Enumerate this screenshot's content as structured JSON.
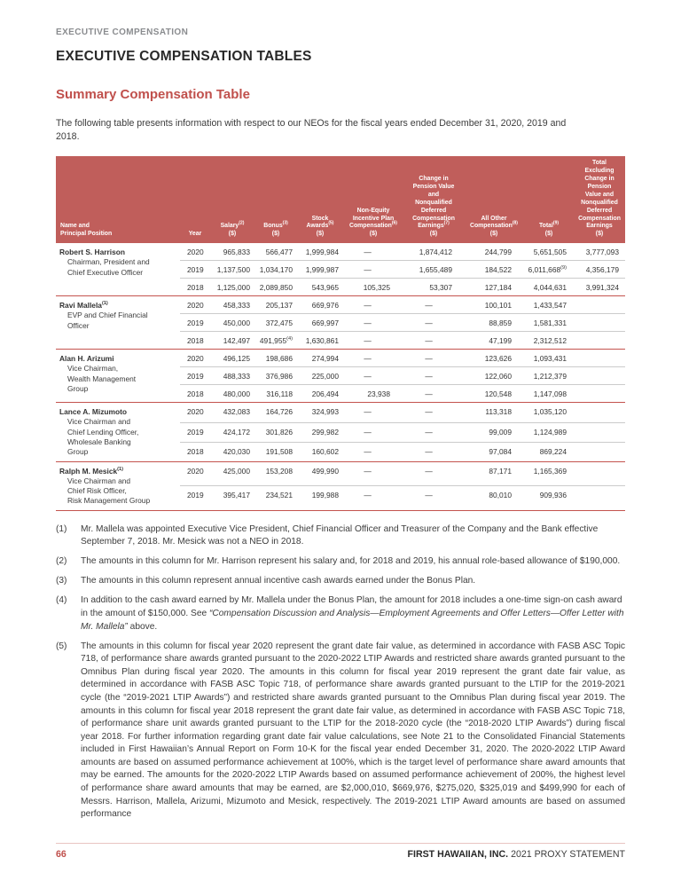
{
  "page": {
    "eyebrow": "EXECUTIVE COMPENSATION",
    "title": "EXECUTIVE COMPENSATION TABLES",
    "section_heading": "Summary Compensation Table",
    "intro": "The following table presents information with respect to our NEOs for the fiscal years ended December 31, 2020, 2019 and 2018."
  },
  "colors": {
    "accent_red": "#c0504c",
    "table_header_bg": "#c05e5b",
    "group_divider_red": "#c4534e",
    "row_divider_gray": "#cbcbcb",
    "eyebrow_gray": "#8a8c8f",
    "footer_line_pink": "#e9c4c2",
    "text_dark": "#282828",
    "text_body": "#3c3c3c"
  },
  "table": {
    "columns": [
      {
        "label": "Name and\nPrincipal Position",
        "sup": "",
        "unit": ""
      },
      {
        "label": "Year",
        "sup": "",
        "unit": ""
      },
      {
        "label": "Salary",
        "sup": "(2)",
        "unit": "($)"
      },
      {
        "label": "Bonus",
        "sup": "(3)",
        "unit": "($)"
      },
      {
        "label": "Stock\nAwards",
        "sup": "(5)",
        "unit": "($)"
      },
      {
        "label": "Non-Equity\nIncentive Plan\nCompensation",
        "sup": "(6)",
        "unit": "($)"
      },
      {
        "label": "Change in\nPension Value\nand\nNonqualified\nDeferred\nCompensation\nEarnings",
        "sup": "(7)",
        "unit": "($)"
      },
      {
        "label": "All Other\nCompensation",
        "sup": "(8)",
        "unit": "($)"
      },
      {
        "label": "Total",
        "sup": "(9)",
        "unit": "($)"
      },
      {
        "label": "Total\nExcluding\nChange in\nPension\nValue and\nNonqualified\nDeferred\nCompensation\nEarnings",
        "sup": "",
        "unit": "($)"
      }
    ],
    "groups": [
      {
        "name": "Robert S. Harrison",
        "name_sup": "",
        "position": "Chairman, President and\nChief Executive Officer",
        "rows": [
          {
            "year": "2020",
            "values": [
              "965,833",
              "566,477",
              "1,999,984",
              "—",
              "1,874,412",
              "244,799",
              "5,651,505",
              "3,777,093"
            ],
            "sups": {}
          },
          {
            "year": "2019",
            "values": [
              "1,137,500",
              "1,034,170",
              "1,999,987",
              "—",
              "1,655,489",
              "184,522",
              "6,011,668",
              "4,356,179"
            ],
            "sups": {
              "6": "(9)"
            }
          },
          {
            "year": "2018",
            "values": [
              "1,125,000",
              "2,089,850",
              "543,965",
              "105,325",
              "53,307",
              "127,184",
              "4,044,631",
              "3,991,324"
            ],
            "sups": {}
          }
        ]
      },
      {
        "name": "Ravi Mallela",
        "name_sup": "(1)",
        "position": "EVP and Chief Financial\nOfficer",
        "rows": [
          {
            "year": "2020",
            "values": [
              "458,333",
              "205,137",
              "669,976",
              "—",
              "—",
              "100,101",
              "1,433,547",
              ""
            ],
            "sups": {}
          },
          {
            "year": "2019",
            "values": [
              "450,000",
              "372,475",
              "669,997",
              "—",
              "—",
              "88,859",
              "1,581,331",
              ""
            ],
            "sups": {}
          },
          {
            "year": "2018",
            "values": [
              "142,497",
              "491,955",
              "1,630,861",
              "—",
              "—",
              "47,199",
              "2,312,512",
              ""
            ],
            "sups": {
              "1": "(4)"
            }
          }
        ]
      },
      {
        "name": "Alan H. Arizumi",
        "name_sup": "",
        "position": "Vice Chairman,\nWealth Management\nGroup",
        "rows": [
          {
            "year": "2020",
            "values": [
              "496,125",
              "198,686",
              "274,994",
              "—",
              "—",
              "123,626",
              "1,093,431",
              ""
            ],
            "sups": {}
          },
          {
            "year": "2019",
            "values": [
              "488,333",
              "376,986",
              "225,000",
              "—",
              "—",
              "122,060",
              "1,212,379",
              ""
            ],
            "sups": {}
          },
          {
            "year": "2018",
            "values": [
              "480,000",
              "316,118",
              "206,494",
              "23,938",
              "—",
              "120,548",
              "1,147,098",
              ""
            ],
            "sups": {}
          }
        ]
      },
      {
        "name": "Lance A. Mizumoto",
        "name_sup": "",
        "position": "Vice Chairman and\nChief Lending Officer,\nWholesale Banking\nGroup",
        "rows": [
          {
            "year": "2020",
            "values": [
              "432,083",
              "164,726",
              "324,993",
              "—",
              "—",
              "113,318",
              "1,035,120",
              ""
            ],
            "sups": {}
          },
          {
            "year": "2019",
            "values": [
              "424,172",
              "301,826",
              "299,982",
              "—",
              "—",
              "99,009",
              "1,124,989",
              ""
            ],
            "sups": {}
          },
          {
            "year": "2018",
            "values": [
              "420,030",
              "191,508",
              "160,602",
              "—",
              "—",
              "97,084",
              "869,224",
              ""
            ],
            "sups": {}
          }
        ]
      },
      {
        "name": "Ralph M. Mesick",
        "name_sup": "(1)",
        "position": "Vice Chairman and\nChief Risk Officer,\nRisk Management Group",
        "rows": [
          {
            "year": "2020",
            "values": [
              "425,000",
              "153,208",
              "499,990",
              "—",
              "—",
              "87,171",
              "1,165,369",
              ""
            ],
            "sups": {}
          },
          {
            "year": "2019",
            "values": [
              "395,417",
              "234,521",
              "199,988",
              "—",
              "—",
              "80,010",
              "909,936",
              ""
            ],
            "sups": {}
          }
        ]
      }
    ]
  },
  "footnotes": [
    {
      "num": "(1)",
      "justify": false,
      "segments": [
        {
          "t": "Mr. Mallela was appointed Executive Vice President, Chief Financial Officer and Treasurer of the Company and the Bank effective September 7, 2018. Mr. Mesick was not a NEO in 2018.",
          "i": false
        }
      ]
    },
    {
      "num": "(2)",
      "justify": false,
      "segments": [
        {
          "t": "The amounts in this column for Mr. Harrison represent his salary and, for 2018 and 2019, his annual role-based allowance of $190,000.",
          "i": false
        }
      ]
    },
    {
      "num": "(3)",
      "justify": false,
      "segments": [
        {
          "t": "The amounts in this column represent annual incentive cash awards earned under the Bonus Plan.",
          "i": false
        }
      ]
    },
    {
      "num": "(4)",
      "justify": false,
      "segments": [
        {
          "t": "In addition to the cash award earned by Mr. Mallela under the Bonus Plan, the amount for 2018 includes a one-time sign-on cash award in the amount of $150,000. See ",
          "i": false
        },
        {
          "t": "“Compensation Discussion and Analysis—Employment Agreements and Offer Letters—Offer Letter with Mr. Mallela”",
          "i": true
        },
        {
          "t": " above.",
          "i": false
        }
      ]
    },
    {
      "num": "(5)",
      "justify": true,
      "segments": [
        {
          "t": "The amounts in this column for fiscal year 2020 represent the grant date fair value, as determined in accordance with FASB ASC Topic 718, of performance share awards granted pursuant to the 2020-2022 LTIP Awards and restricted share awards granted pursuant to the Omnibus Plan during fiscal year 2020. The amounts in this column for fiscal year 2019 represent the grant date fair value, as determined in accordance with FASB ASC Topic 718, of performance share awards granted pursuant to the LTIP for the 2019-2021 cycle (the “2019-2021 LTIP Awards”) and restricted share awards granted pursuant to the Omnibus Plan during fiscal year 2019. The amounts in this column for fiscal year 2018 represent the grant date fair value, as determined in accordance with FASB ASC Topic 718, of performance share unit awards granted pursuant to the LTIP for the 2018-2020 cycle (the “2018-2020 LTIP Awards”) during fiscal year 2018. For further information regarding grant date fair value calculations, see Note 21 to the Consolidated Financial Statements included in First Hawaiian’s Annual Report on Form 10-K for the fiscal year ended December 31, 2020. The 2020-2022 LTIP Award amounts are based on assumed performance achievement at 100%, which is the target level of performance share award amounts that may be earned. The amounts for the 2020-2022 LTIP Awards based on assumed performance achievement of 200%, the highest level of performance share award amounts that may be earned, are $2,000,010, $669,976, $275,020, $325,019 and $499,990 for each of Messrs. Harrison, Mallela, Arizumi, Mizumoto and Mesick, respectively. The 2019-2021 LTIP Award amounts are based on assumed performance",
          "i": false
        }
      ]
    }
  ],
  "footer": {
    "page_number": "66",
    "brand": "FIRST HAWAIIAN, INC.",
    "suffix": " 2021 PROXY STATEMENT"
  }
}
